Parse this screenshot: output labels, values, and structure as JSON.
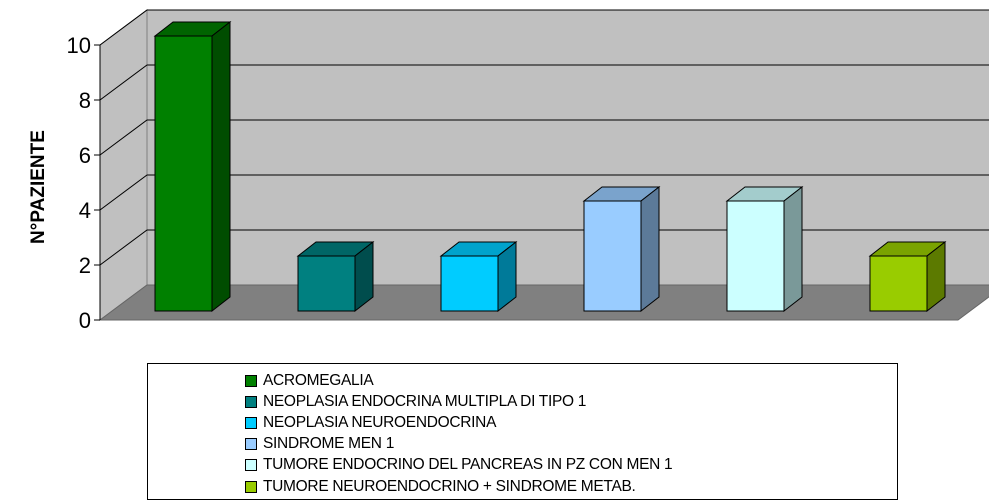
{
  "chart_data": {
    "type": "bar",
    "ylabel": "N°PAZIENTE",
    "xlabel": "",
    "ylim": [
      0,
      10
    ],
    "yticks": [
      0,
      2,
      4,
      6,
      8,
      10
    ],
    "grid": true,
    "legend_position": "bottom",
    "series": [
      {
        "name": "ACROMEGALIA",
        "value": 10,
        "color": "#008000",
        "top_color": "#006400",
        "side_color": "#004d00"
      },
      {
        "name": "NEOPLASIA ENDOCRINA MULTIPLA DI TIPO 1",
        "value": 2,
        "color": "#008080",
        "top_color": "#006666",
        "side_color": "#004d4d"
      },
      {
        "name": "NEOPLASIA NEUROENDOCRINA",
        "value": 2,
        "color": "#00ccff",
        "top_color": "#00a3cc",
        "side_color": "#007a99"
      },
      {
        "name": "SINDROME MEN 1",
        "value": 4,
        "color": "#99ccff",
        "top_color": "#7aa3cc",
        "side_color": "#5c7a99"
      },
      {
        "name": "TUMORE ENDOCRINO DEL PANCREAS IN PZ CON MEN 1",
        "value": 4,
        "color": "#ccffff",
        "top_color": "#a3cccc",
        "side_color": "#7a9999"
      },
      {
        "name": "TUMORE NEUROENDOCRINO + SINDROME METAB.",
        "value": 2,
        "color": "#99cc00",
        "top_color": "#7aa300",
        "side_color": "#5c7a00"
      }
    ]
  }
}
